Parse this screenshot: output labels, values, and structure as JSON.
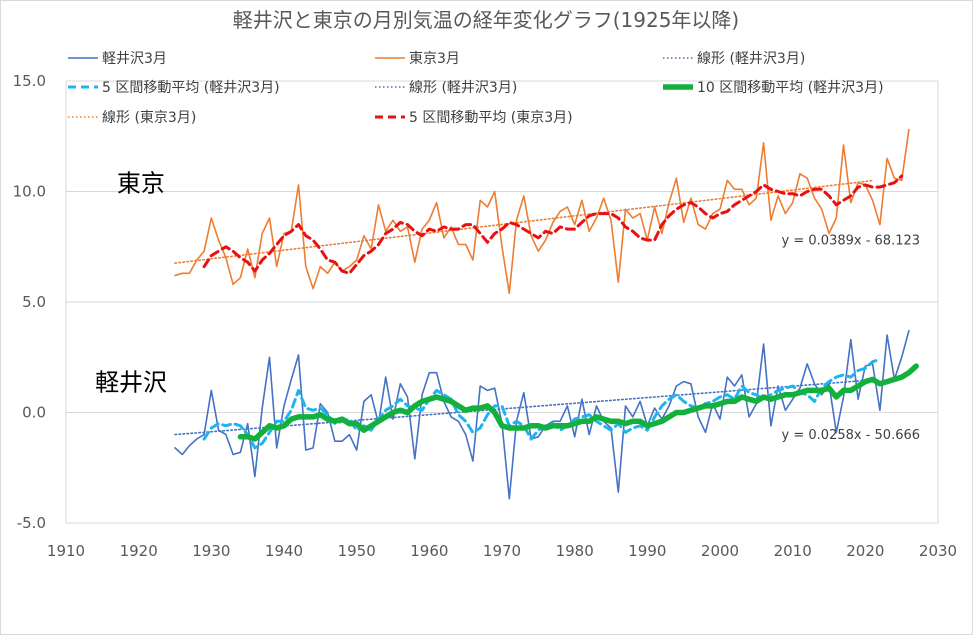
{
  "chart_data": {
    "type": "line",
    "title": "軽井沢と東京の月別気温の経年変化グラフ(1925年以降)",
    "xlabel": "",
    "ylabel": "",
    "xlim": [
      1910,
      2030
    ],
    "ylim": [
      -5,
      15
    ],
    "x_ticks": [
      1910,
      1920,
      1930,
      1940,
      1950,
      1960,
      1970,
      1980,
      1990,
      2000,
      2010,
      2020,
      2030
    ],
    "y_ticks": [
      15,
      10,
      5,
      0,
      -5
    ],
    "y_tick_labels": [
      "15.0",
      "10.0",
      "5.0",
      "0.0",
      "-5.0"
    ],
    "grid": "horizontal",
    "legend_position": "top",
    "colors": {
      "karuizawa": "#4472C4",
      "tokyo": "#ED7D31",
      "ma5_karuizawa": "#1FB4F0",
      "ma10_karuizawa": "#13B03C",
      "ma5_tokyo": "#E81010",
      "grid": "#D9D9D9"
    },
    "legend": [
      {
        "label": "軽井沢3月",
        "series": "karuizawa",
        "style": "solid"
      },
      {
        "label": "東京3月",
        "series": "tokyo",
        "style": "solid"
      },
      {
        "label": "線形 (軽井沢3月)",
        "series": "trend_karuizawa",
        "style": "dotted"
      },
      {
        "label": "5 区間移動平均 (軽井沢3月)",
        "series": "ma5_karuizawa",
        "style": "dashed"
      },
      {
        "label": "線形 (軽井沢3月)",
        "series": "trend_karuizawa",
        "style": "dotted"
      },
      {
        "label": "10 区間移動平均 (軽井沢3月)",
        "series": "ma10_karuizawa",
        "style": "thick"
      },
      {
        "label": "線形 (東京3月)",
        "series": "trend_tokyo",
        "style": "dotted"
      },
      {
        "label": "5 区間移動平均 (東京3月)",
        "series": "ma5_tokyo",
        "style": "dashed"
      }
    ],
    "annotations": {
      "tokyo_label": {
        "text": "東京",
        "x": 1917,
        "y": 10
      },
      "karuizawa_label": {
        "text": "軽井沢",
        "x": 1914,
        "y": 1
      },
      "tokyo_equation": {
        "text": "y = 0.0389x - 68.123",
        "x": 2018,
        "y": 7.6
      },
      "karuizawa_equation": {
        "text": "y = 0.0258x - 50.666",
        "x": 2018,
        "y": -1.2
      }
    },
    "series": [
      {
        "key": "karuizawa",
        "x_start": 1925,
        "values": [
          -1.6,
          -1.9,
          -1.5,
          -1.2,
          -1.0,
          1.0,
          -0.8,
          -1.0,
          -1.9,
          -1.8,
          -0.5,
          -2.9,
          0.2,
          2.5,
          -1.6,
          0.3,
          1.5,
          2.6,
          -1.7,
          -1.6,
          0.4,
          0.0,
          -1.3,
          -1.3,
          -1.0,
          -1.7,
          0.5,
          0.8,
          -0.5,
          1.6,
          -0.3,
          1.3,
          0.7,
          -2.1,
          0.8,
          1.8,
          1.8,
          0.5,
          -0.2,
          -0.4,
          -1.0,
          -2.2,
          1.2,
          1.0,
          1.1,
          -0.5,
          -3.9,
          -0.4,
          0.9,
          -1.2,
          -1.1,
          -0.6,
          -0.4,
          -0.4,
          0.3,
          -1.1,
          0.6,
          -1.0,
          0.3,
          -0.4,
          -0.7,
          -3.6,
          0.3,
          -0.2,
          0.5,
          -0.6,
          0.2,
          -0.3,
          0.3,
          1.2,
          1.4,
          1.3,
          -0.2,
          -0.9,
          0.4,
          -0.3,
          1.6,
          1.2,
          1.7,
          -0.2,
          0.4,
          3.1,
          -0.6,
          1.2,
          0.1,
          0.6,
          1.1,
          2.2,
          1.3,
          0.8,
          1.3,
          -0.9,
          0.7,
          3.3,
          0.6,
          2.1,
          2.2,
          0.1,
          3.5,
          1.5,
          2.5,
          3.7
        ]
      },
      {
        "key": "tokyo",
        "x_start": 1925,
        "values": [
          6.2,
          6.3,
          6.3,
          6.9,
          7.3,
          8.8,
          7.8,
          7.0,
          5.8,
          6.1,
          7.4,
          6.1,
          8.1,
          8.8,
          6.6,
          8.1,
          8.2,
          10.3,
          6.6,
          5.6,
          6.6,
          6.3,
          6.8,
          6.4,
          6.6,
          6.9,
          8.0,
          7.4,
          9.4,
          8.2,
          8.7,
          8.2,
          8.4,
          6.8,
          8.3,
          8.7,
          9.5,
          7.9,
          8.4,
          7.6,
          7.6,
          6.9,
          9.6,
          9.3,
          10.0,
          7.5,
          5.4,
          8.7,
          9.8,
          8.0,
          7.3,
          7.8,
          8.6,
          9.1,
          9.3,
          8.5,
          9.6,
          8.2,
          8.8,
          9.7,
          8.7,
          5.9,
          9.2,
          8.8,
          9.0,
          7.8,
          9.3,
          8.1,
          9.5,
          10.6,
          8.6,
          9.7,
          8.5,
          8.3,
          9.0,
          9.2,
          10.5,
          10.1,
          10.1,
          9.4,
          9.7,
          12.2,
          8.7,
          9.8,
          9.0,
          9.5,
          10.8,
          10.6,
          9.7,
          9.2,
          8.1,
          8.8,
          12.1,
          9.5,
          10.4,
          10.3,
          9.6,
          8.5,
          11.5,
          10.6,
          10.5,
          12.8
        ]
      },
      {
        "key": "ma5_karuizawa",
        "x_start": 1929,
        "values": [
          -1.2,
          -0.7,
          -0.5,
          -0.6,
          -0.5,
          -0.6,
          -1.0,
          -1.6,
          -1.4,
          -0.9,
          -0.4,
          -0.4,
          0.1,
          1.0,
          0.2,
          0.1,
          0.2,
          -0.1,
          -0.5,
          -0.4,
          -0.3,
          -0.8,
          -0.6,
          -0.8,
          -0.3,
          0.1,
          0.3,
          0.6,
          0.3,
          0.2,
          0.1,
          0.6,
          1.0,
          0.8,
          0.6,
          -0.1,
          -0.4,
          -0.9,
          -0.7,
          -0.1,
          0.3,
          0.3,
          -0.6,
          -0.4,
          -0.6,
          -1.2,
          -0.8,
          -0.6,
          -0.5,
          -0.8,
          -0.6,
          -0.3,
          -0.2,
          -0.1,
          -0.4,
          -0.6,
          -0.8,
          -0.5,
          -0.9,
          -0.7,
          -0.6,
          -0.8,
          -0.2,
          0.3,
          0.6,
          0.8,
          0.5,
          0.3,
          0.2,
          0.4,
          0.5,
          0.7,
          0.8,
          0.6,
          1.2,
          0.9,
          0.8,
          0.6,
          0.8,
          1.0,
          1.1,
          1.2,
          0.9,
          0.8,
          0.5,
          1.1,
          1.4,
          1.6,
          1.7,
          1.6,
          1.9,
          2.0,
          2.3,
          2.4
        ]
      },
      {
        "key": "ma10_karuizawa",
        "x_start": 1934,
        "values": [
          -1.1,
          -1.1,
          -1.2,
          -0.9,
          -0.6,
          -0.7,
          -0.6,
          -0.3,
          -0.2,
          -0.2,
          -0.2,
          -0.1,
          -0.3,
          -0.4,
          -0.3,
          -0.5,
          -0.5,
          -0.8,
          -0.6,
          -0.4,
          -0.2,
          0.0,
          0.1,
          0.0,
          0.3,
          0.5,
          0.6,
          0.7,
          0.6,
          0.5,
          0.3,
          0.1,
          0.2,
          0.2,
          0.3,
          0.0,
          -0.6,
          -0.7,
          -0.7,
          -0.7,
          -0.6,
          -0.6,
          -0.7,
          -0.6,
          -0.6,
          -0.6,
          -0.5,
          -0.4,
          -0.4,
          -0.2,
          -0.3,
          -0.4,
          -0.4,
          -0.5,
          -0.4,
          -0.4,
          -0.6,
          -0.5,
          -0.4,
          -0.2,
          0.0,
          0.0,
          0.1,
          0.2,
          0.3,
          0.3,
          0.4,
          0.5,
          0.5,
          0.7,
          0.6,
          0.5,
          0.7,
          0.6,
          0.7,
          0.8,
          0.8,
          0.9,
          1.0,
          1.0,
          1.0,
          1.1,
          0.7,
          1.0,
          1.0,
          1.2,
          1.4,
          1.5,
          1.3,
          1.4,
          1.5,
          1.6,
          1.8,
          2.1
        ]
      },
      {
        "key": "ma5_tokyo",
        "x_start": 1929,
        "values": [
          6.6,
          7.1,
          7.3,
          7.5,
          7.3,
          7.0,
          6.8,
          6.4,
          6.9,
          7.2,
          7.6,
          8.0,
          8.2,
          8.5,
          8.0,
          7.8,
          7.4,
          6.9,
          6.8,
          6.4,
          6.3,
          6.7,
          7.1,
          7.3,
          7.6,
          8.1,
          8.3,
          8.6,
          8.5,
          8.2,
          8.0,
          8.3,
          8.2,
          8.4,
          8.3,
          8.3,
          8.5,
          8.5,
          8.1,
          7.7,
          8.1,
          8.3,
          8.6,
          8.5,
          8.3,
          8.1,
          7.9,
          8.2,
          8.1,
          8.4,
          8.3,
          8.3,
          8.6,
          8.9,
          9.0,
          9.0,
          9.0,
          8.8,
          8.4,
          8.2,
          7.9,
          7.8,
          7.8,
          8.5,
          8.9,
          9.2,
          9.4,
          9.5,
          9.3,
          9.0,
          8.8,
          9.0,
          9.1,
          9.4,
          9.6,
          9.8,
          10.0,
          10.3,
          10.1,
          10.0,
          9.9,
          9.9,
          9.8,
          10.0,
          10.1,
          10.1,
          9.8,
          9.4,
          9.6,
          9.8,
          10.2,
          10.3,
          10.2,
          10.2,
          10.3,
          10.4,
          10.7
        ]
      },
      {
        "key": "trend_karuizawa",
        "slope": 0.0258,
        "intercept": -50.666,
        "x_range": [
          1925,
          2021
        ]
      },
      {
        "key": "trend_tokyo",
        "slope": 0.0389,
        "intercept": -68.123,
        "x_range": [
          1925,
          2021
        ]
      }
    ]
  }
}
